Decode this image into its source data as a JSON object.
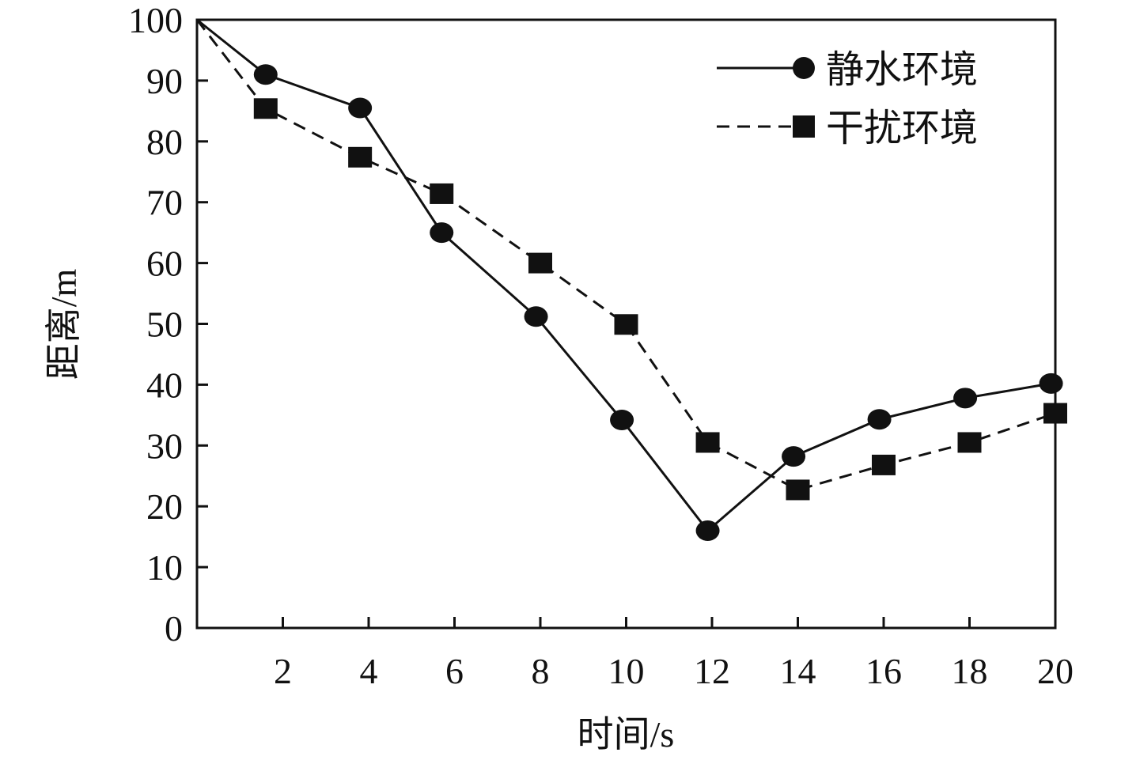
{
  "chart_data": {
    "type": "line",
    "title": "",
    "xlabel": "时间/s",
    "ylabel": "距离/m",
    "xlim": [
      0,
      20
    ],
    "ylim": [
      0,
      100
    ],
    "xticks": [
      2,
      4,
      6,
      8,
      10,
      12,
      14,
      16,
      18,
      20
    ],
    "yticks": [
      0,
      10,
      20,
      30,
      40,
      50,
      60,
      70,
      80,
      90,
      100
    ],
    "grid": false,
    "legend_position": "top-right",
    "series": [
      {
        "name": "静水环境",
        "line_style": "solid",
        "marker": "circle",
        "color": "#111111",
        "points": [
          [
            0,
            100
          ],
          [
            1.6,
            91
          ],
          [
            3.8,
            85.5
          ],
          [
            5.7,
            65
          ],
          [
            7.9,
            51.2
          ],
          [
            9.9,
            34.2
          ],
          [
            11.9,
            16
          ],
          [
            13.9,
            28.2
          ],
          [
            15.9,
            34.3
          ],
          [
            17.9,
            37.8
          ],
          [
            19.9,
            40.2
          ]
        ]
      },
      {
        "name": "干扰环境",
        "line_style": "dashed",
        "marker": "square",
        "color": "#111111",
        "points": [
          [
            0,
            100
          ],
          [
            1.6,
            85.4
          ],
          [
            3.8,
            77.4
          ],
          [
            5.7,
            71.4
          ],
          [
            8.0,
            60
          ],
          [
            10.0,
            49.9
          ],
          [
            11.9,
            30.5
          ],
          [
            14.0,
            22.7
          ],
          [
            16.0,
            26.8
          ],
          [
            18.0,
            30.5
          ],
          [
            20.0,
            35.3
          ]
        ]
      }
    ]
  }
}
